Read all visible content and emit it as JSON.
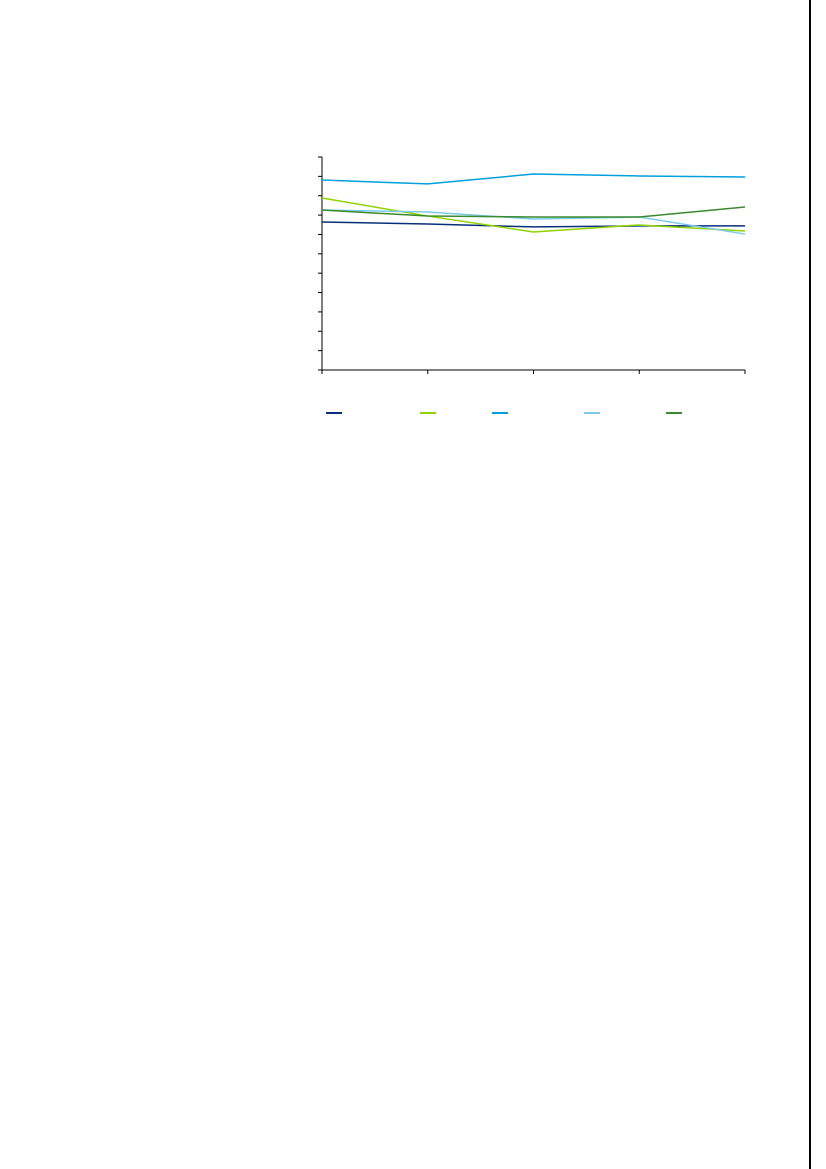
{
  "chart_data": {
    "type": "line",
    "title": "",
    "xlabel": "",
    "ylabel": "",
    "categories": [
      "",
      "",
      "",
      "",
      ""
    ],
    "ylim": [
      0,
      11
    ],
    "y_tick_count": 12,
    "grid": false,
    "legend_placement": "bottom",
    "series": [
      {
        "color": "#0a2f7a",
        "values": [
          7.64,
          7.54,
          7.39,
          7.44,
          7.44
        ]
      },
      {
        "color": "#8fd400",
        "values": [
          8.88,
          7.95,
          7.13,
          7.49,
          7.18
        ]
      },
      {
        "color": "#00a0dc",
        "values": [
          9.81,
          9.61,
          10.12,
          10.02,
          9.97
        ]
      },
      {
        "color": "#7ccbea",
        "values": [
          8.26,
          8.16,
          7.8,
          7.9,
          7.02
        ]
      },
      {
        "color": "#3a8a2e",
        "values": [
          8.26,
          7.95,
          7.9,
          7.9,
          8.42
        ]
      }
    ]
  }
}
